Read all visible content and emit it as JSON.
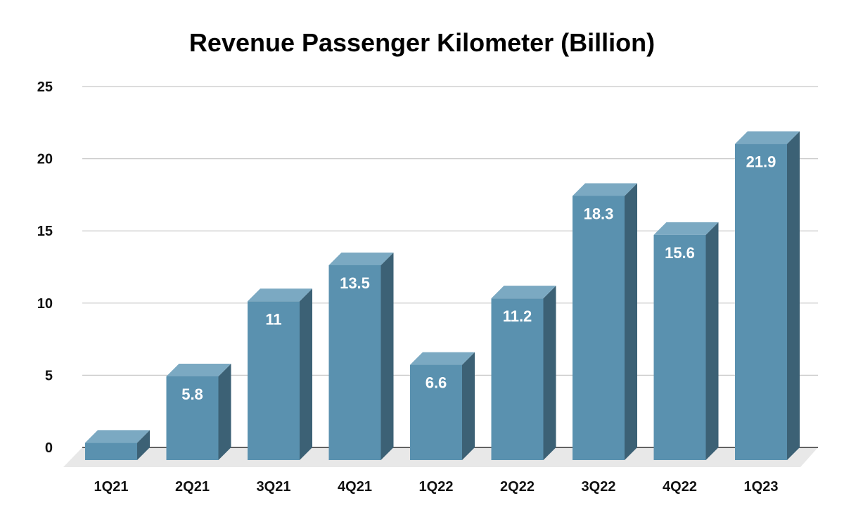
{
  "chart_data": {
    "type": "bar",
    "title": "Revenue Passenger Kilometer (Billion)",
    "categories": [
      "1Q21",
      "2Q21",
      "3Q21",
      "4Q21",
      "1Q22",
      "2Q22",
      "3Q22",
      "4Q22",
      "1Q23"
    ],
    "values": [
      1.2,
      5.8,
      11,
      13.5,
      6.6,
      11.2,
      18.3,
      15.6,
      21.9
    ],
    "value_labels": [
      "",
      "5.8",
      "11",
      "13.5",
      "6.6",
      "11.2",
      "18.3",
      "15.6",
      "21.9"
    ],
    "yticks": [
      0,
      5,
      10,
      15,
      20,
      25
    ],
    "ylim": [
      0,
      25
    ],
    "xlabel": "",
    "ylabel": "",
    "grid": true,
    "legend": "none",
    "style": "3d-column",
    "colors": {
      "front": "#5a91af",
      "top": "#7ba9c2",
      "side": "#3c6175",
      "floor": "#e8e8e8",
      "grid": "#c8c8c8",
      "baseline": "#333333"
    }
  }
}
